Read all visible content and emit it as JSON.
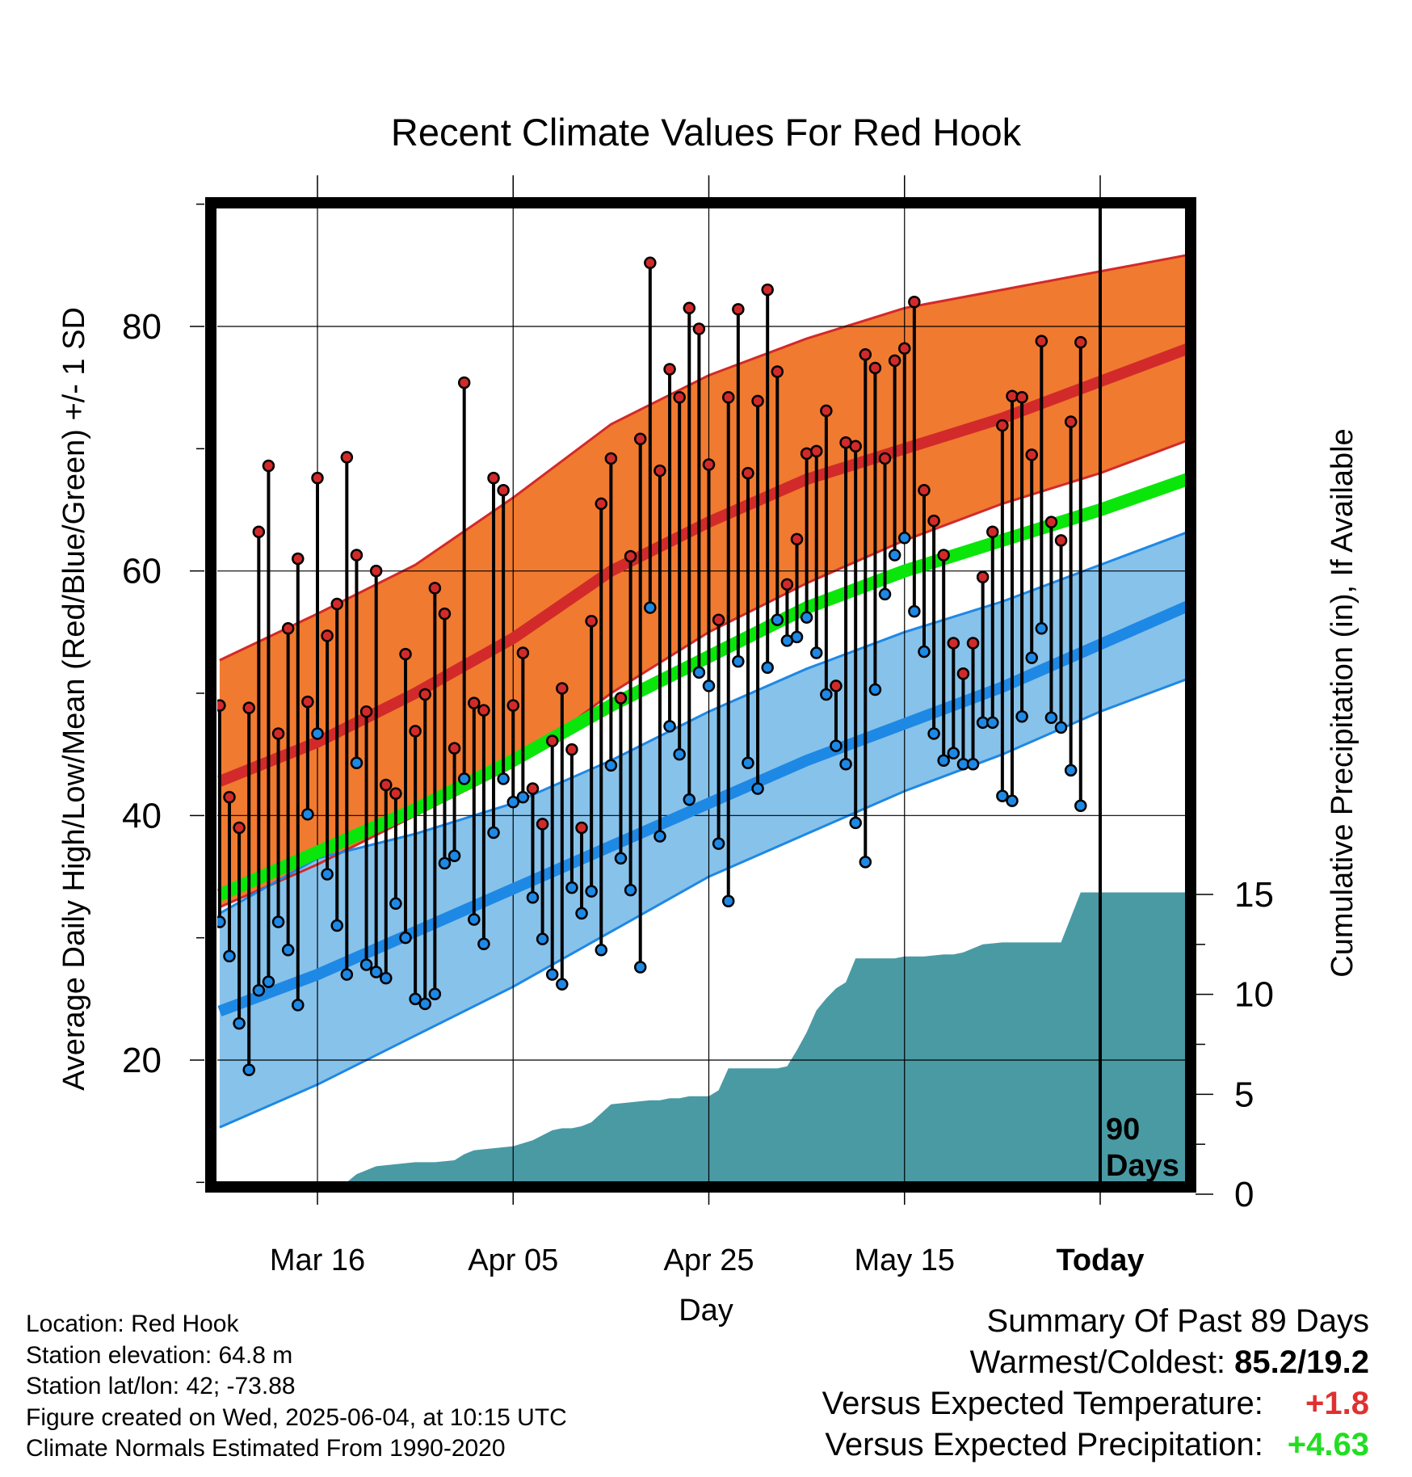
{
  "chart_data": {
    "type": "line",
    "title": "Recent Climate Values For Red Hook",
    "xlabel": "Day",
    "ylabel": "Average Daily High/Low/Mean (Red/Blue/Green) +/- 1 SD",
    "y2label": "Cumulative Precipitation (in), If Available",
    "x_tick_labels": [
      "Mar 16",
      "Apr 05",
      "Apr 25",
      "May 15",
      "Today"
    ],
    "x_ticks_day": [
      10,
      30,
      50,
      70,
      90
    ],
    "x_range_day": [
      0,
      100
    ],
    "ylim": [
      10,
      90
    ],
    "y_ticks": [
      20,
      40,
      60,
      80
    ],
    "y2lim": [
      0,
      40
    ],
    "y2_ticks": [
      0,
      5,
      10,
      15
    ],
    "today_label": "90\nDays",
    "normals": {
      "day": [
        0,
        10,
        20,
        30,
        40,
        50,
        60,
        70,
        80,
        90,
        100
      ],
      "high_mean": [
        42.8,
        46.0,
        50.0,
        54.5,
        60.0,
        64.0,
        67.5,
        70.0,
        72.5,
        75.5,
        78.5
      ],
      "high_plus_sd": [
        52.7,
        56.5,
        60.5,
        66.0,
        72.0,
        76.0,
        79.0,
        81.5,
        83.0,
        84.5,
        86.0
      ],
      "high_minus_sd": [
        32.5,
        36.0,
        40.0,
        44.0,
        50.0,
        55.0,
        59.0,
        62.5,
        65.5,
        68.0,
        71.0
      ],
      "mean": [
        33.5,
        37.0,
        40.5,
        44.5,
        49.0,
        53.0,
        57.0,
        60.0,
        62.5,
        65.0,
        67.8
      ],
      "low_mean": [
        24.0,
        27.0,
        30.5,
        34.0,
        37.5,
        41.0,
        44.5,
        47.5,
        50.5,
        54.0,
        57.5
      ],
      "low_plus_sd": [
        32.0,
        36.5,
        38.5,
        41.0,
        44.5,
        48.5,
        52.0,
        55.0,
        57.5,
        60.5,
        63.5
      ],
      "low_minus_sd": [
        14.5,
        18.0,
        22.0,
        26.0,
        30.5,
        35.0,
        38.5,
        42.0,
        45.0,
        48.5,
        51.5
      ]
    },
    "series": [
      {
        "name": "High",
        "color": "#cc2222",
        "values": [
          49,
          41.5,
          39,
          48.8,
          63.2,
          68.6,
          46.7,
          55.3,
          61,
          49.3,
          67.6,
          54.7,
          57.3,
          69.3,
          61.3,
          48.5,
          60,
          42.5,
          41.8,
          53.2,
          46.9,
          49.9,
          58.6,
          56.5,
          45.5,
          75.4,
          49.2,
          48.6,
          67.6,
          66.6,
          49,
          53.3,
          42.2,
          39.3,
          46.1,
          50.4,
          45.4,
          39,
          55.9,
          65.5,
          69.2,
          49.6,
          61.2,
          70.8,
          85.2,
          68.2,
          76.5,
          74.2,
          81.5,
          79.8,
          68.7,
          56,
          74.2,
          81.4,
          68.0,
          73.9,
          83.0,
          76.3,
          58.9,
          62.6,
          69.6,
          69.8,
          73.1,
          50.6,
          70.5,
          70.2,
          77.7,
          76.6,
          69.2,
          77.2,
          78.2,
          82.0,
          66.6,
          64.1,
          61.3,
          54.1,
          51.6,
          54.1,
          59.5,
          63.2,
          71.9,
          74.3,
          74.2,
          69.5,
          78.8,
          64.0,
          62.5,
          72.2,
          78.7
        ]
      },
      {
        "name": "Low",
        "color": "#2a8fe0",
        "values": [
          31.3,
          28.5,
          23,
          19.2,
          25.7,
          26.4,
          31.3,
          29.0,
          24.5,
          40.1,
          46.7,
          35.2,
          31.0,
          27.0,
          44.3,
          27.8,
          27.2,
          26.7,
          32.8,
          30.0,
          25.0,
          24.6,
          25.4,
          36.1,
          36.7,
          43.0,
          31.5,
          29.5,
          38.6,
          43.0,
          41.1,
          41.5,
          33.3,
          29.9,
          27.0,
          26.2,
          34.1,
          32.0,
          33.8,
          29.0,
          44.1,
          36.5,
          33.9,
          27.6,
          57.0,
          38.3,
          47.3,
          45.0,
          41.3,
          51.7,
          50.6,
          37.7,
          33.0,
          52.6,
          44.3,
          42.2,
          52.1,
          56.0,
          54.3,
          54.6,
          56.2,
          53.3,
          49.9,
          45.7,
          44.2,
          39.4,
          36.2,
          50.3,
          58.1,
          61.3,
          62.7,
          56.7,
          53.4,
          46.7,
          44.5,
          45.1,
          44.2,
          44.2,
          47.6,
          47.6,
          41.6,
          41.2,
          48.1,
          52.9,
          55.3,
          48.0,
          47.2,
          43.7,
          40.8
        ]
      }
    ],
    "precip_cumulative": {
      "day": [
        0,
        10,
        10.5,
        13,
        14,
        16,
        18,
        20,
        22,
        24,
        25,
        26,
        28,
        30,
        32,
        34,
        35,
        36,
        37,
        38,
        40,
        42,
        44,
        45,
        46,
        47,
        48,
        50,
        51,
        52,
        53,
        54,
        55,
        56,
        57,
        58,
        59,
        60,
        61,
        62,
        63,
        64,
        65,
        66,
        67,
        68,
        69,
        70,
        72,
        74,
        75,
        76,
        77,
        78,
        80,
        82,
        84,
        85,
        86,
        88,
        90,
        95,
        100
      ],
      "value": [
        0,
        0,
        0.5,
        0.6,
        1.0,
        1.4,
        1.5,
        1.6,
        1.6,
        1.7,
        2.0,
        2.2,
        2.3,
        2.4,
        2.7,
        3.2,
        3.3,
        3.3,
        3.4,
        3.6,
        4.5,
        4.6,
        4.7,
        4.7,
        4.8,
        4.8,
        4.9,
        4.9,
        5.2,
        6.3,
        6.3,
        6.3,
        6.3,
        6.3,
        6.3,
        6.4,
        7.2,
        8.1,
        9.2,
        9.8,
        10.3,
        10.6,
        11.8,
        11.8,
        11.8,
        11.8,
        11.8,
        11.9,
        11.9,
        12.0,
        12.0,
        12.1,
        12.3,
        12.5,
        12.6,
        12.6,
        12.6,
        12.6,
        12.6,
        15.1,
        15.1,
        15.1,
        15.1
      ]
    }
  },
  "info": {
    "location": "Location: Red Hook",
    "elevation": "Station elevation: 64.8 m",
    "latlon": "Station lat/lon: 42; -73.88",
    "created": "Figure created on Wed, 2025-06-04, at 10:15 UTC",
    "normals": "Climate Normals Estimated From 1990-2020"
  },
  "summary": {
    "title": "Summary Of Past 89 Days",
    "warm_cold_label": "Warmest/Coldest:",
    "warm_cold_value": "85.2/19.2",
    "temp_label": "Versus Expected Temperature:",
    "temp_value": "+1.8",
    "precip_label": "Versus Expected Precipitation:",
    "precip_value": "+4.63"
  },
  "colors": {
    "high_band": "#f07a30",
    "high_line": "#d22a2a",
    "low_band": "#87c2ea",
    "low_line": "#1e88e5",
    "mean_line": "#0ae60a",
    "precip_fill": "#4a9aa4",
    "temp_anomaly": "#e03030",
    "precip_anomaly": "#22dd22"
  }
}
